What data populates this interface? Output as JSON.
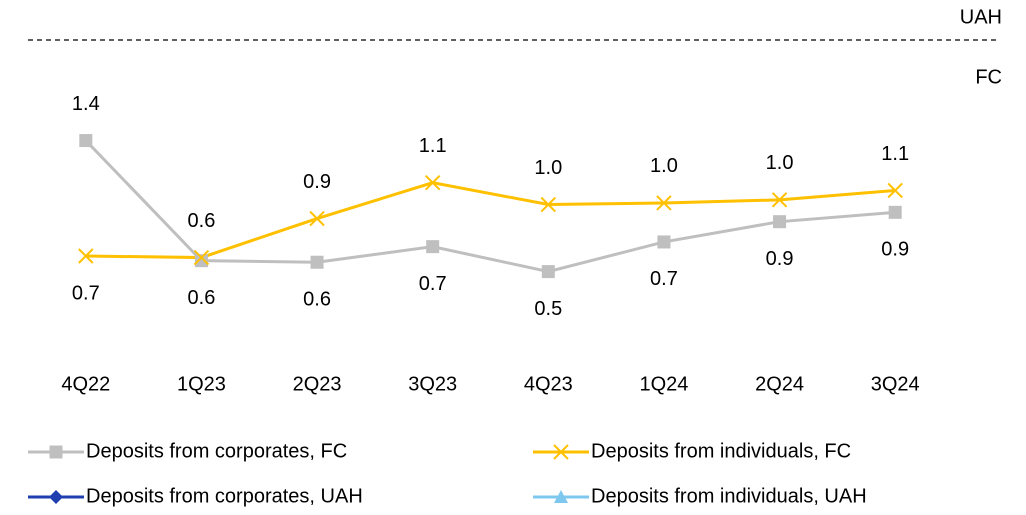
{
  "chart_data": {
    "type": "line",
    "categories": [
      "4Q22",
      "1Q23",
      "2Q23",
      "3Q23",
      "4Q23",
      "1Q24",
      "2Q24",
      "3Q24"
    ],
    "series": [
      {
        "name": "Deposits from corporates, FC",
        "color": "#bfbfbf",
        "marker": "square",
        "values": [
          1.39,
          0.62,
          0.61,
          0.71,
          0.55,
          0.74,
          0.87,
          0.93
        ],
        "value_labels": [
          "1.4",
          "0.6",
          "0.6",
          "0.7",
          "0.5",
          "0.7",
          "0.9",
          "0.9"
        ]
      },
      {
        "name": "Deposits from individuals, FC",
        "color": "#ffc000",
        "marker": "x",
        "values": [
          0.65,
          0.64,
          0.89,
          1.12,
          0.98,
          0.99,
          1.01,
          1.07
        ],
        "value_labels": [
          "0.7",
          "0.6",
          "0.9",
          "1.1",
          "1.0",
          "1.0",
          "1.0",
          "1.1"
        ]
      },
      {
        "name": "Deposits from corporates, UAH",
        "color": "#1f3fb0",
        "marker": "diamond",
        "values": [
          null,
          null,
          null,
          null,
          null,
          null,
          null,
          null
        ]
      },
      {
        "name": "Deposits from individuals, UAH",
        "color": "#7ec8f0",
        "marker": "triangle",
        "values": [
          null,
          null,
          null,
          null,
          null,
          null,
          null,
          null
        ]
      }
    ],
    "annotations": [
      "UAH",
      "FC"
    ],
    "ylim": [
      0,
      1.6
    ]
  }
}
